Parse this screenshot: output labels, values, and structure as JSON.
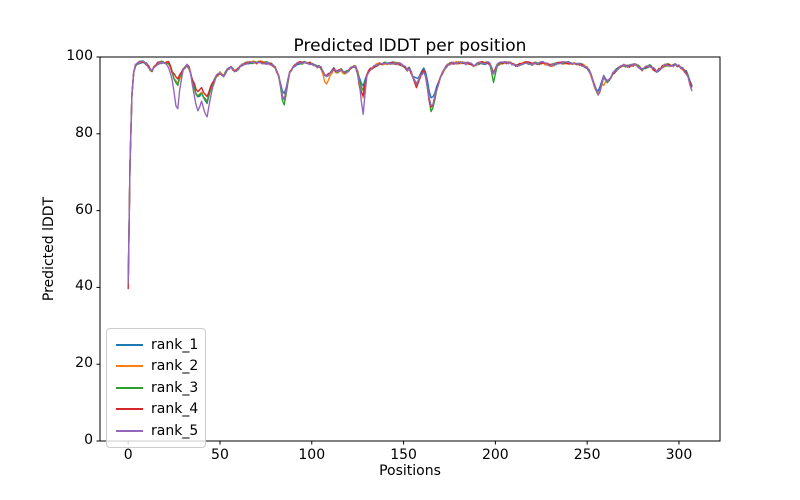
{
  "chart_data": {
    "type": "line",
    "title": "Predicted lDDT per position",
    "xlabel": "Positions",
    "ylabel": "Predicted lDDT",
    "xlim": [
      -15.35,
      322.35
    ],
    "ylim": [
      0,
      100
    ],
    "xticks": [
      0,
      50,
      100,
      150,
      200,
      250,
      300
    ],
    "yticks": [
      0,
      20,
      40,
      60,
      80,
      100
    ],
    "grid": false,
    "legend_position": "lower left",
    "x_data_range": [
      0,
      307
    ],
    "base_curve": [
      [
        0,
        41
      ],
      [
        1,
        72
      ],
      [
        2,
        90
      ],
      [
        3,
        96
      ],
      [
        4,
        97.8
      ],
      [
        6,
        98.6
      ],
      [
        8,
        98.7
      ],
      [
        10,
        98.2
      ],
      [
        12,
        96.8
      ],
      [
        13,
        96.5
      ],
      [
        14,
        97.4
      ],
      [
        16,
        98.3
      ],
      [
        18,
        98.6
      ],
      [
        20,
        98.4
      ],
      [
        22,
        98.5
      ],
      [
        23,
        97.5
      ],
      [
        24,
        96
      ],
      [
        25,
        94.5
      ],
      [
        26,
        93.5
      ],
      [
        27,
        92.8
      ],
      [
        28,
        94.5
      ],
      [
        30,
        96.8
      ],
      [
        32,
        97.8
      ],
      [
        33,
        97.3
      ],
      [
        34,
        95.8
      ],
      [
        35,
        93.5
      ],
      [
        36,
        91.8
      ],
      [
        37,
        90.5
      ],
      [
        38,
        89.8
      ],
      [
        39,
        90
      ],
      [
        40,
        90.8
      ],
      [
        41,
        89.8
      ],
      [
        42,
        88.8
      ],
      [
        43,
        88.2
      ],
      [
        44,
        90
      ],
      [
        45,
        91.8
      ],
      [
        46,
        93.2
      ],
      [
        48,
        95
      ],
      [
        50,
        95.8
      ],
      [
        52,
        95.2
      ],
      [
        54,
        96.6
      ],
      [
        56,
        97.4
      ],
      [
        58,
        96.3
      ],
      [
        60,
        96.9
      ],
      [
        62,
        98
      ],
      [
        64,
        98.4
      ],
      [
        66,
        98.6
      ],
      [
        68,
        98.6
      ],
      [
        70,
        98.5
      ],
      [
        72,
        98.6
      ],
      [
        74,
        98.5
      ],
      [
        76,
        98.4
      ],
      [
        78,
        98.1
      ],
      [
        80,
        97.2
      ],
      [
        82,
        95
      ],
      [
        83,
        92.5
      ],
      [
        84,
        90
      ],
      [
        85,
        88.8
      ],
      [
        86,
        91
      ],
      [
        87,
        94
      ],
      [
        88,
        96
      ],
      [
        90,
        97.6
      ],
      [
        92,
        98.2
      ],
      [
        94,
        98.5
      ],
      [
        96,
        98.5
      ],
      [
        98,
        98.4
      ],
      [
        100,
        98.3
      ],
      [
        102,
        97.9
      ],
      [
        103,
        97.3
      ],
      [
        104,
        97.7
      ],
      [
        105,
        97.2
      ],
      [
        106,
        96.3
      ],
      [
        107,
        95.4
      ],
      [
        108,
        95
      ],
      [
        109,
        95.3
      ],
      [
        110,
        95.8
      ],
      [
        111,
        96.4
      ],
      [
        112,
        96.9
      ],
      [
        113,
        96.3
      ],
      [
        114,
        96.1
      ],
      [
        115,
        96.5
      ],
      [
        116,
        96.9
      ],
      [
        117,
        96.3
      ],
      [
        118,
        95.9
      ],
      [
        119,
        96.1
      ],
      [
        120,
        96.4
      ],
      [
        121,
        96.9
      ],
      [
        122,
        97.3
      ],
      [
        123,
        97.5
      ],
      [
        124,
        97.4
      ],
      [
        125,
        96.2
      ],
      [
        126,
        93.8
      ],
      [
        127,
        91.5
      ],
      [
        128,
        89.5
      ],
      [
        129,
        92.5
      ],
      [
        130,
        95.2
      ],
      [
        131,
        96.2
      ],
      [
        132,
        96.9
      ],
      [
        134,
        97.6
      ],
      [
        136,
        98.1
      ],
      [
        138,
        98.3
      ],
      [
        140,
        98.4
      ],
      [
        142,
        98.3
      ],
      [
        144,
        98.4
      ],
      [
        146,
        98.3
      ],
      [
        148,
        98.2
      ],
      [
        150,
        97.7
      ],
      [
        151,
        97.3
      ],
      [
        152,
        96.7
      ],
      [
        153,
        97
      ],
      [
        154,
        96.2
      ],
      [
        155,
        95
      ],
      [
        156,
        93.9
      ],
      [
        157,
        93.2
      ],
      [
        158,
        93.8
      ],
      [
        159,
        94.8
      ],
      [
        160,
        95.7
      ],
      [
        161,
        96.3
      ],
      [
        162,
        94.8
      ],
      [
        163,
        92
      ],
      [
        164,
        89
      ],
      [
        165,
        87.2
      ],
      [
        166,
        87.8
      ],
      [
        167,
        89.5
      ],
      [
        168,
        91.3
      ],
      [
        169,
        93
      ],
      [
        170,
        94.6
      ],
      [
        171,
        95.6
      ],
      [
        172,
        96.5
      ],
      [
        173,
        97.3
      ],
      [
        174,
        97.9
      ],
      [
        176,
        98.3
      ],
      [
        178,
        98.5
      ],
      [
        180,
        98.5
      ],
      [
        182,
        98.5
      ],
      [
        184,
        98.3
      ],
      [
        186,
        98.4
      ],
      [
        188,
        97.9
      ],
      [
        190,
        98.2
      ],
      [
        192,
        98.5
      ],
      [
        194,
        98.4
      ],
      [
        196,
        98.5
      ],
      [
        197,
        98.2
      ],
      [
        198,
        97
      ],
      [
        199,
        95.9
      ],
      [
        200,
        96.8
      ],
      [
        201,
        97.8
      ],
      [
        202,
        98.2
      ],
      [
        204,
        98.5
      ],
      [
        206,
        98.6
      ],
      [
        208,
        98.4
      ],
      [
        210,
        98.1
      ],
      [
        212,
        97.7
      ],
      [
        214,
        98.2
      ],
      [
        216,
        98.5
      ],
      [
        218,
        98.4
      ],
      [
        220,
        98.2
      ],
      [
        222,
        98.4
      ],
      [
        224,
        98.3
      ],
      [
        226,
        98.5
      ],
      [
        228,
        98.1
      ],
      [
        230,
        97.8
      ],
      [
        232,
        98
      ],
      [
        234,
        98.3
      ],
      [
        236,
        98.5
      ],
      [
        238,
        98.4
      ],
      [
        240,
        98.5
      ],
      [
        242,
        98.3
      ],
      [
        244,
        98.2
      ],
      [
        246,
        98.1
      ],
      [
        248,
        97.8
      ],
      [
        250,
        97.2
      ],
      [
        251,
        96.5
      ],
      [
        252,
        95.4
      ],
      [
        253,
        94
      ],
      [
        254,
        92.6
      ],
      [
        255,
        91.3
      ],
      [
        256,
        90.4
      ],
      [
        257,
        91.5
      ],
      [
        258,
        93.3
      ],
      [
        259,
        94.9
      ],
      [
        260,
        94.3
      ],
      [
        261,
        93.6
      ],
      [
        262,
        93.9
      ],
      [
        263,
        94.8
      ],
      [
        264,
        95.6
      ],
      [
        265,
        96.1
      ],
      [
        266,
        96.7
      ],
      [
        268,
        97.4
      ],
      [
        270,
        97.8
      ],
      [
        272,
        97.5
      ],
      [
        274,
        97.8
      ],
      [
        276,
        98
      ],
      [
        278,
        97.5
      ],
      [
        280,
        96.6
      ],
      [
        281,
        96.9
      ],
      [
        282,
        97.3
      ],
      [
        284,
        97.8
      ],
      [
        286,
        96.9
      ],
      [
        288,
        96.3
      ],
      [
        290,
        97.1
      ],
      [
        292,
        97.8
      ],
      [
        294,
        98
      ],
      [
        296,
        97.7
      ],
      [
        298,
        97.9
      ],
      [
        300,
        97.6
      ],
      [
        302,
        97
      ],
      [
        303,
        96.5
      ],
      [
        304,
        96.1
      ],
      [
        305,
        95
      ],
      [
        306,
        93.6
      ],
      [
        307,
        92.4
      ]
    ],
    "series": [
      {
        "name": "rank_1",
        "color": "#1f77b4",
        "deltas": [
          [
            82,
            0
          ],
          [
            84,
            1
          ],
          [
            85,
            1.5
          ],
          [
            86,
            1
          ],
          [
            88,
            0
          ],
          [
            125,
            0
          ],
          [
            126,
            1
          ],
          [
            128,
            3
          ],
          [
            130,
            0.5
          ],
          [
            132,
            0
          ],
          [
            155,
            0
          ],
          [
            156,
            1
          ],
          [
            157,
            1.2
          ],
          [
            158,
            1
          ],
          [
            160,
            0.8
          ],
          [
            162,
            1.5
          ],
          [
            163,
            2
          ],
          [
            164,
            2.3
          ],
          [
            165,
            2
          ],
          [
            166,
            1.8
          ],
          [
            168,
            1
          ],
          [
            170,
            0
          ],
          [
            254,
            0
          ],
          [
            256,
            1
          ],
          [
            258,
            0.5
          ],
          [
            260,
            0
          ]
        ]
      },
      {
        "name": "rank_2",
        "color": "#ff7f0e",
        "deltas": [
          [
            104,
            0
          ],
          [
            106,
            -0.8
          ],
          [
            107,
            -1.6
          ],
          [
            108,
            -1.8
          ],
          [
            110,
            -1
          ],
          [
            112,
            -0.3
          ],
          [
            114,
            0
          ],
          [
            116,
            -0.5
          ],
          [
            118,
            0
          ],
          [
            252,
            0
          ],
          [
            254,
            -0.3
          ],
          [
            256,
            -0.5
          ],
          [
            258,
            -0.5
          ],
          [
            259,
            -2.3
          ],
          [
            260,
            -0.5
          ],
          [
            262,
            0
          ]
        ]
      },
      {
        "name": "rank_3",
        "color": "#2ca02c",
        "deltas": [
          [
            82,
            0
          ],
          [
            84,
            -1
          ],
          [
            85,
            -1.2
          ],
          [
            86,
            -0.8
          ],
          [
            88,
            0
          ],
          [
            126,
            0
          ],
          [
            128,
            2
          ],
          [
            130,
            0
          ],
          [
            163,
            0
          ],
          [
            164,
            -0.8
          ],
          [
            165,
            -1.2
          ],
          [
            166,
            -0.8
          ],
          [
            168,
            0
          ],
          [
            197,
            0
          ],
          [
            198,
            -1
          ],
          [
            199,
            -2.2
          ],
          [
            200,
            -1
          ],
          [
            202,
            0
          ],
          [
            254,
            0
          ],
          [
            256,
            -0.5
          ],
          [
            258,
            0
          ]
        ]
      },
      {
        "name": "rank_4",
        "color": "#d62728",
        "deltas": [
          [
            0,
            -1.3
          ],
          [
            1,
            0
          ],
          [
            24,
            0
          ],
          [
            25,
            1
          ],
          [
            26,
            1.5
          ],
          [
            27,
            1.5
          ],
          [
            28,
            1
          ],
          [
            30,
            0
          ],
          [
            34,
            0
          ],
          [
            36,
            1.3
          ],
          [
            38,
            1.5
          ],
          [
            40,
            1
          ],
          [
            42,
            1.5
          ],
          [
            43,
            1.5
          ],
          [
            44,
            1
          ],
          [
            46,
            0
          ],
          [
            124,
            0
          ],
          [
            125,
            -0.5
          ],
          [
            126,
            -1.6
          ],
          [
            127,
            -1
          ],
          [
            128,
            0.5
          ],
          [
            130,
            0
          ],
          [
            155,
            0
          ],
          [
            156,
            -0.8
          ],
          [
            157,
            -1
          ],
          [
            158,
            -0.5
          ],
          [
            160,
            0
          ],
          [
            163,
            0
          ],
          [
            164,
            -0.5
          ],
          [
            165,
            -0.6
          ],
          [
            166,
            -0.5
          ],
          [
            168,
            0
          ],
          [
            305,
            0
          ],
          [
            307,
            -0.4
          ]
        ]
      },
      {
        "name": "rank_5",
        "color": "#9467bd",
        "deltas": [
          [
            20,
            0
          ],
          [
            24,
            -2
          ],
          [
            26,
            -6
          ],
          [
            27,
            -6.5
          ],
          [
            28,
            -3
          ],
          [
            30,
            0
          ],
          [
            34,
            0
          ],
          [
            36,
            -2
          ],
          [
            38,
            -3.5
          ],
          [
            40,
            -2.5
          ],
          [
            42,
            -3.5
          ],
          [
            43,
            -4
          ],
          [
            44,
            -3
          ],
          [
            46,
            -1
          ],
          [
            48,
            0
          ],
          [
            124,
            0
          ],
          [
            126,
            -1
          ],
          [
            128,
            -4.5
          ],
          [
            130,
            -0.5
          ],
          [
            132,
            0
          ],
          [
            302,
            0
          ],
          [
            305,
            -0.5
          ],
          [
            307,
            -0.8
          ]
        ]
      }
    ]
  }
}
